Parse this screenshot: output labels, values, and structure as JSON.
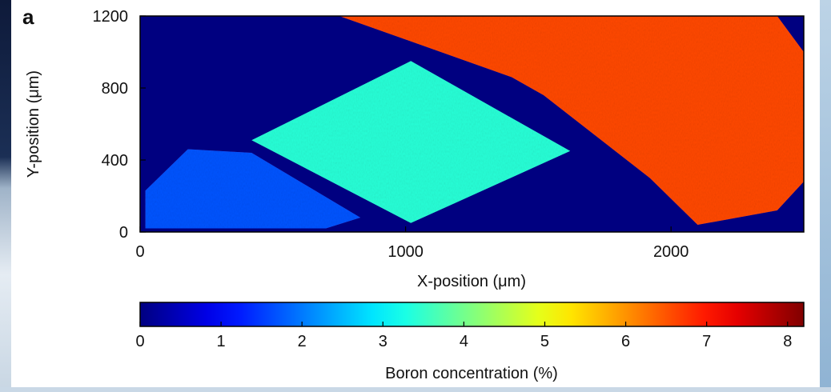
{
  "chart_data": [
    {
      "type": "heatmap",
      "panel_label": "a",
      "title": "",
      "xlabel": "X-position (μm)",
      "ylabel": "Y-position (μm)",
      "xlim": [
        0,
        2500
      ],
      "ylim": [
        0,
        1200
      ],
      "x_ticks": [
        0,
        1000,
        2000
      ],
      "y_ticks": [
        0,
        400,
        800,
        1200
      ],
      "background_value": 0,
      "regions": [
        {
          "name": "",
          "value": 1.7,
          "polygon": [
            [
              20,
              230
            ],
            [
              180,
              460
            ],
            [
              420,
              440
            ],
            [
              830,
              80
            ],
            [
              700,
              20
            ],
            [
              20,
              20
            ]
          ]
        },
        {
          "name": "",
          "value": 3.4,
          "polygon": [
            [
              420,
              510
            ],
            [
              1020,
              950
            ],
            [
              1620,
              450
            ],
            [
              1020,
              50
            ]
          ]
        },
        {
          "name": "",
          "value": 6.6,
          "polygon": [
            [
              750,
              1200
            ],
            [
              1400,
              860
            ],
            [
              1520,
              760
            ],
            [
              1920,
              300
            ],
            [
              2100,
              40
            ],
            [
              2400,
              120
            ],
            [
              2500,
              280
            ],
            [
              2500,
              1000
            ],
            [
              2400,
              1200
            ]
          ]
        }
      ],
      "colorbar": {
        "label": "Boron concentration (%)",
        "range": [
          0,
          8.2
        ],
        "ticks": [
          0,
          1,
          2,
          3,
          4,
          5,
          6,
          7,
          8
        ],
        "colormap": "jet"
      }
    }
  ]
}
